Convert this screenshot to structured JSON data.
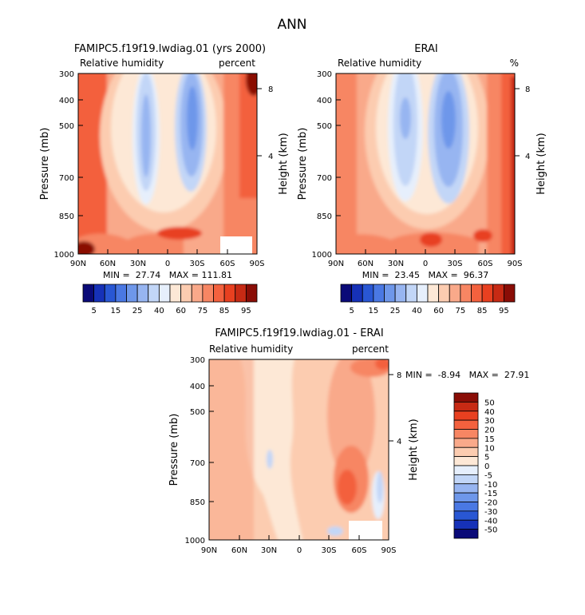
{
  "page_title": "ANN",
  "chart_data": [
    {
      "type": "heatmap",
      "id": "model",
      "title": "FAMIPC5.f19f19.lwdiag.01 (yrs 2000)",
      "subtitle_left": "Relative humidity",
      "subtitle_right": "percent",
      "ylabel_left": "Pressure (mb)",
      "ylabel_right": "Height (km)",
      "x_ticks": [
        "90N",
        "60N",
        "30N",
        "0",
        "30S",
        "60S",
        "90S"
      ],
      "y_ticks": [
        300,
        400,
        500,
        700,
        850,
        1000
      ],
      "y_ticks_right": [
        8,
        4
      ],
      "stats": "MIN =  27.74   MAX = 111.81",
      "colorbar_labels": [
        "5",
        "15",
        "25",
        "40",
        "60",
        "75",
        "85",
        "95"
      ]
    },
    {
      "type": "heatmap",
      "id": "obs",
      "title": "ERAI",
      "subtitle_left": "Relative humidity",
      "subtitle_right": "%",
      "ylabel_left": "Pressure (mb)",
      "ylabel_right": "Height (km)",
      "x_ticks": [
        "90N",
        "60N",
        "30N",
        "0",
        "30S",
        "60S",
        "90S"
      ],
      "y_ticks": [
        300,
        400,
        500,
        700,
        850,
        1000
      ],
      "y_ticks_right": [
        8,
        4
      ],
      "stats": "MIN =  23.45   MAX =  96.37",
      "colorbar_labels": [
        "5",
        "15",
        "25",
        "40",
        "60",
        "75",
        "85",
        "95"
      ]
    },
    {
      "type": "heatmap",
      "id": "diff",
      "title": "FAMIPC5.f19f19.lwdiag.01 - ERAI",
      "subtitle_left": "Relative humidity",
      "subtitle_right": "percent",
      "ylabel_left": "Pressure (mb)",
      "ylabel_right": "Height (km)",
      "x_ticks": [
        "90N",
        "60N",
        "30N",
        "0",
        "30S",
        "60S",
        "90S"
      ],
      "y_ticks": [
        300,
        400,
        500,
        700,
        850,
        1000
      ],
      "y_ticks_right": [
        8,
        4
      ],
      "stats": "MIN =  -8.94   MAX =  27.91",
      "colorbar_labels": [
        "50",
        "40",
        "30",
        "20",
        "15",
        "10",
        "5",
        "0",
        "-5",
        "-10",
        "-15",
        "-20",
        "-30",
        "-40",
        "-50"
      ]
    }
  ],
  "colors": {
    "rh_scale": [
      "#0a0a78",
      "#1631b8",
      "#2957d4",
      "#4a78e3",
      "#6e97ea",
      "#97b5f1",
      "#c2d6f7",
      "#e6effc",
      "#fde8d6",
      "#fcccb0",
      "#f9a98a",
      "#f78663",
      "#f3613e",
      "#e84020",
      "#c72a14",
      "#8a0d06"
    ],
    "diff_scale": [
      "#8a0d06",
      "#c72a14",
      "#e84020",
      "#f3613e",
      "#f78663",
      "#f9a98a",
      "#fcccb0",
      "#fde8d6",
      "#e6effc",
      "#c2d6f7",
      "#97b5f1",
      "#6e97ea",
      "#4a78e3",
      "#2957d4",
      "#1631b8",
      "#0a0a78"
    ]
  }
}
